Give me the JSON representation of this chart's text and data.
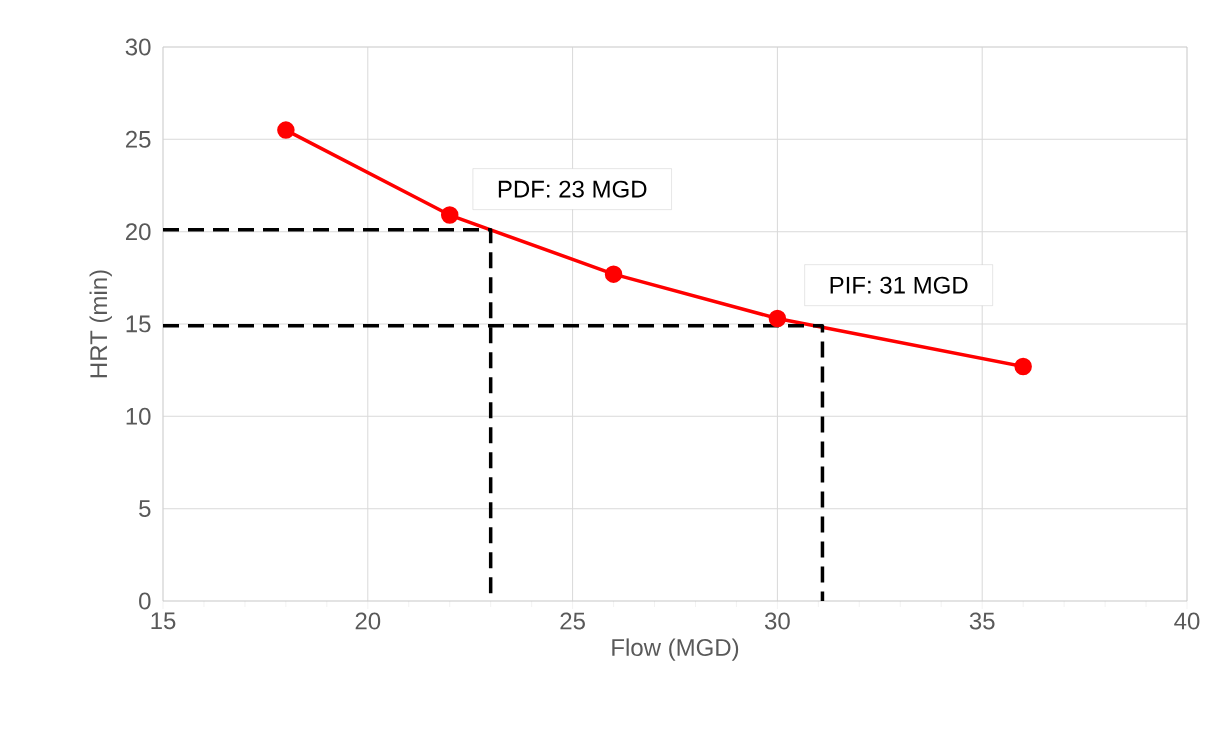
{
  "chart_data": {
    "type": "line",
    "xlabel": "Flow (MGD)",
    "ylabel": "HRT (min)",
    "xlim": [
      15,
      40
    ],
    "xticks": [
      15,
      20,
      25,
      30,
      35,
      40
    ],
    "ylim": [
      0,
      30
    ],
    "yticks": [
      0,
      5,
      10,
      15,
      20,
      25,
      30
    ],
    "grid": true,
    "series": [
      {
        "color": "#ff0000",
        "marker": "circle",
        "line_style": "solid",
        "x": [
          18,
          22,
          26,
          30,
          36
        ],
        "values": [
          25.5,
          20.9,
          17.7,
          15.3,
          12.7
        ]
      },
      {
        "color": "#000000",
        "marker": "none",
        "line_style": "dashed",
        "x": [
          15,
          23,
          23
        ],
        "values": [
          20.1,
          20.1,
          0
        ]
      },
      {
        "color": "#000000",
        "marker": "none",
        "line_style": "dashed",
        "x": [
          15,
          31.1,
          31.1
        ],
        "values": [
          14.9,
          14.9,
          0
        ]
      }
    ],
    "annotations": [
      {
        "text": "PDF: 23 MGD",
        "x": 23,
        "y": 20.1
      },
      {
        "text": "PIF: 31 MGD",
        "x": 31.1,
        "y": 14.9
      }
    ]
  }
}
